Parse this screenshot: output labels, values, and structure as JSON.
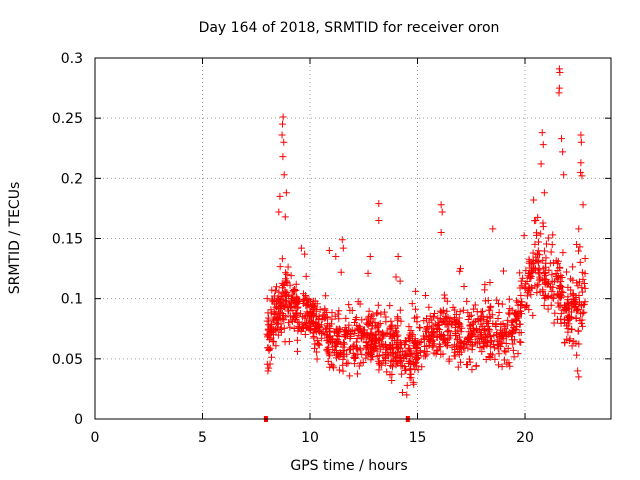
{
  "chart_data": {
    "type": "scatter",
    "title": "Day 164 of 2018, SRMTID for receiver oron",
    "xlabel": "GPS time / hours",
    "ylabel": "SRMTID / TECUs",
    "xlim": [
      0,
      24
    ],
    "ylim": [
      0,
      0.3
    ],
    "xticks": [
      0,
      5,
      10,
      15,
      20
    ],
    "xtick_labels": [
      "0",
      "5",
      "10",
      "15",
      "20"
    ],
    "yticks": [
      0,
      0.05,
      0.1,
      0.15,
      0.2,
      0.25,
      0.3
    ],
    "ytick_labels": [
      "0",
      "0.05",
      "0.1",
      "0.15",
      "0.2",
      "0.25",
      "0.3"
    ],
    "grid": true,
    "marker": "+",
    "color": "#ff0000",
    "series": [
      {
        "name": "SRMTID",
        "density": [
          {
            "x": 8.0,
            "v": 0.072,
            "s": 0.022
          },
          {
            "x": 8.3,
            "v": 0.078,
            "s": 0.02
          },
          {
            "x": 8.6,
            "v": 0.095,
            "s": 0.02
          },
          {
            "x": 9.0,
            "v": 0.098,
            "s": 0.018
          },
          {
            "x": 9.5,
            "v": 0.088,
            "s": 0.017
          },
          {
            "x": 10.0,
            "v": 0.085,
            "s": 0.018
          },
          {
            "x": 10.5,
            "v": 0.074,
            "s": 0.018
          },
          {
            "x": 11.0,
            "v": 0.066,
            "s": 0.017
          },
          {
            "x": 11.5,
            "v": 0.064,
            "s": 0.017
          },
          {
            "x": 12.0,
            "v": 0.066,
            "s": 0.017
          },
          {
            "x": 12.5,
            "v": 0.062,
            "s": 0.017
          },
          {
            "x": 13.0,
            "v": 0.065,
            "s": 0.017
          },
          {
            "x": 13.5,
            "v": 0.066,
            "s": 0.017
          },
          {
            "x": 14.0,
            "v": 0.06,
            "s": 0.016
          },
          {
            "x": 14.5,
            "v": 0.052,
            "s": 0.015
          },
          {
            "x": 15.0,
            "v": 0.057,
            "s": 0.016
          },
          {
            "x": 15.5,
            "v": 0.068,
            "s": 0.017
          },
          {
            "x": 16.0,
            "v": 0.072,
            "s": 0.018
          },
          {
            "x": 16.5,
            "v": 0.07,
            "s": 0.017
          },
          {
            "x": 17.0,
            "v": 0.068,
            "s": 0.017
          },
          {
            "x": 17.5,
            "v": 0.07,
            "s": 0.017
          },
          {
            "x": 18.0,
            "v": 0.074,
            "s": 0.017
          },
          {
            "x": 18.5,
            "v": 0.075,
            "s": 0.017
          },
          {
            "x": 19.0,
            "v": 0.068,
            "s": 0.017
          },
          {
            "x": 19.5,
            "v": 0.075,
            "s": 0.018
          },
          {
            "x": 20.0,
            "v": 0.105,
            "s": 0.02
          },
          {
            "x": 20.5,
            "v": 0.13,
            "s": 0.022
          },
          {
            "x": 21.0,
            "v": 0.12,
            "s": 0.022
          },
          {
            "x": 21.5,
            "v": 0.11,
            "s": 0.022
          },
          {
            "x": 22.0,
            "v": 0.085,
            "s": 0.02
          },
          {
            "x": 22.5,
            "v": 0.095,
            "s": 0.022
          },
          {
            "x": 22.8,
            "v": 0.105,
            "s": 0.024
          }
        ],
        "highlights": [
          [
            8.75,
            0.251
          ],
          [
            8.72,
            0.245
          ],
          [
            8.7,
            0.236
          ],
          [
            8.78,
            0.23
          ],
          [
            8.74,
            0.218
          ],
          [
            8.8,
            0.203
          ],
          [
            8.6,
            0.185
          ],
          [
            8.9,
            0.188
          ],
          [
            8.55,
            0.172
          ],
          [
            8.85,
            0.168
          ],
          [
            9.6,
            0.142
          ],
          [
            9.75,
            0.137
          ],
          [
            10.9,
            0.14
          ],
          [
            11.2,
            0.135
          ],
          [
            11.5,
            0.149
          ],
          [
            11.55,
            0.142
          ],
          [
            11.45,
            0.122
          ],
          [
            13.2,
            0.179
          ],
          [
            13.2,
            0.165
          ],
          [
            12.8,
            0.135
          ],
          [
            12.7,
            0.121
          ],
          [
            14.1,
            0.135
          ],
          [
            14.0,
            0.118
          ],
          [
            16.1,
            0.178
          ],
          [
            16.15,
            0.172
          ],
          [
            16.1,
            0.155
          ],
          [
            17.0,
            0.125
          ],
          [
            18.5,
            0.158
          ],
          [
            19.0,
            0.123
          ],
          [
            20.4,
            0.182
          ],
          [
            20.5,
            0.165
          ],
          [
            20.8,
            0.238
          ],
          [
            20.85,
            0.228
          ],
          [
            20.75,
            0.212
          ],
          [
            20.9,
            0.188
          ],
          [
            21.6,
            0.291
          ],
          [
            21.62,
            0.288
          ],
          [
            21.6,
            0.275
          ],
          [
            21.58,
            0.271
          ],
          [
            21.7,
            0.233
          ],
          [
            21.75,
            0.222
          ],
          [
            21.8,
            0.203
          ],
          [
            22.6,
            0.236
          ],
          [
            22.62,
            0.23
          ],
          [
            22.6,
            0.213
          ],
          [
            22.58,
            0.205
          ],
          [
            22.65,
            0.202
          ],
          [
            22.7,
            0.178
          ],
          [
            22.5,
            0.158
          ],
          [
            22.4,
            0.145
          ],
          [
            22.45,
            0.04
          ],
          [
            22.5,
            0.035
          ],
          [
            14.3,
            0.022
          ],
          [
            14.5,
            0.02
          ],
          [
            13.8,
            0.032
          ]
        ],
        "zero_markers": [
          [
            7.95,
            0.0
          ],
          [
            14.55,
            0.0
          ]
        ]
      }
    ]
  }
}
